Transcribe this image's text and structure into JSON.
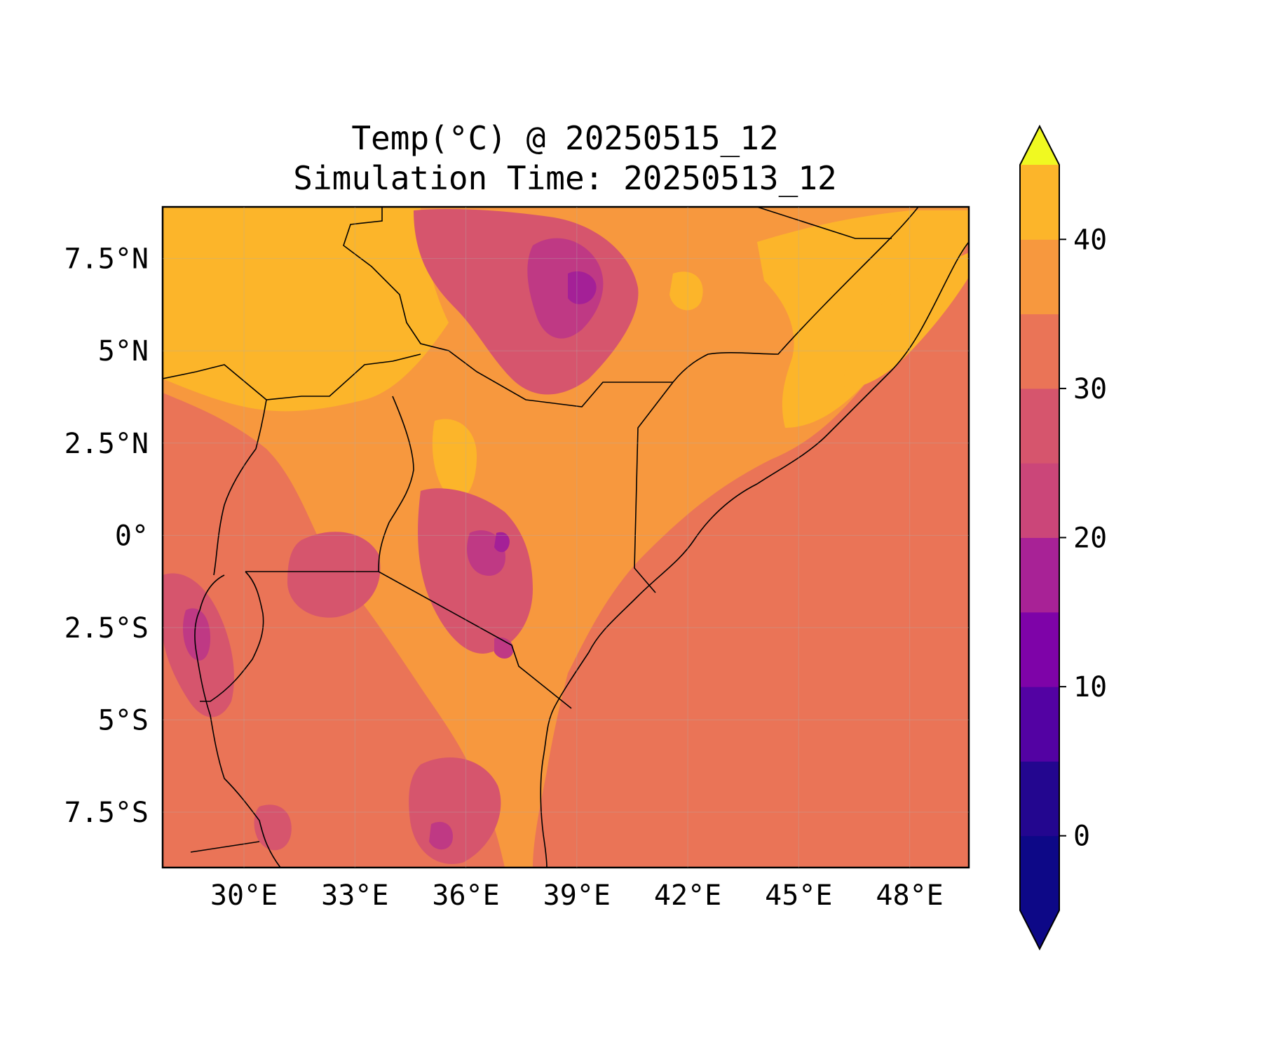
{
  "title": {
    "line1": "Temp(°C) @ 20250515_12",
    "line2": "Simulation Time: 20250513_12"
  },
  "map": {
    "lon_range": [
      27.8,
      49.6
    ],
    "lat_range": [
      -9.0,
      8.9
    ],
    "x_ticks": [
      {
        "value": 30,
        "label": "30°E"
      },
      {
        "value": 33,
        "label": "33°E"
      },
      {
        "value": 36,
        "label": "36°E"
      },
      {
        "value": 39,
        "label": "39°E"
      },
      {
        "value": 42,
        "label": "42°E"
      },
      {
        "value": 45,
        "label": "45°E"
      },
      {
        "value": 48,
        "label": "48°E"
      }
    ],
    "y_ticks": [
      {
        "value": 7.5,
        "label": "7.5°N"
      },
      {
        "value": 5,
        "label": "5°N"
      },
      {
        "value": 2.5,
        "label": "2.5°N"
      },
      {
        "value": 0,
        "label": "0°"
      },
      {
        "value": -2.5,
        "label": "2.5°S"
      },
      {
        "value": -5,
        "label": "5°S"
      },
      {
        "value": -7.5,
        "label": "7.5°S"
      }
    ],
    "gridlines": true,
    "ocean_value_c": 27,
    "fill_colors": {
      "hot": "#fcb52a",
      "warm": "#f7983e",
      "mild": "#ea7457",
      "cool": "#d6556d",
      "cold": "#bf3984",
      "colder": "#a42097"
    }
  },
  "colorbar": {
    "range": [
      -5,
      45
    ],
    "extend": "both",
    "boundaries": [
      -5,
      0,
      5,
      10,
      15,
      20,
      25,
      30,
      35,
      40,
      45
    ],
    "colors": [
      "#0d0887",
      "#23068f",
      "#5302a3",
      "#7e03a8",
      "#a82296",
      "#cb4679",
      "#d6556d",
      "#ea7457",
      "#f7983e",
      "#fcb52a",
      "#f0e627"
    ],
    "under_color": "#0d0887",
    "over_color": "#f0f921",
    "ticks": [
      {
        "value": 0,
        "label": "0"
      },
      {
        "value": 10,
        "label": "10"
      },
      {
        "value": 20,
        "label": "20"
      },
      {
        "value": 30,
        "label": "30"
      },
      {
        "value": 40,
        "label": "40"
      }
    ]
  }
}
